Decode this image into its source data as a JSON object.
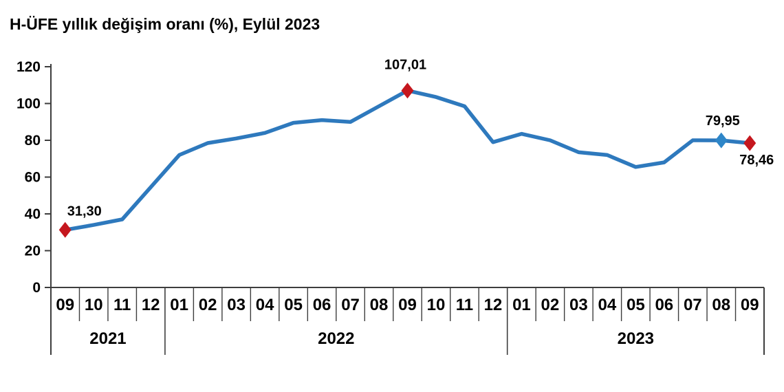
{
  "title": "H-ÜFE yıllık değişim oranı (%), Eylül 2023",
  "colors": {
    "line": "#2e79bd",
    "marker_red": "#c5171e",
    "marker_blue": "#2e86c8",
    "axis": "#3d3d3d",
    "text": "#000000"
  },
  "chart_data": {
    "type": "line",
    "title": "H-ÜFE yıllık değişim oranı (%), Eylül 2023",
    "xlabel": "",
    "ylabel": "",
    "ylim": [
      0,
      120
    ],
    "yticks": [
      0,
      20,
      40,
      60,
      80,
      100,
      120
    ],
    "grid": false,
    "legend": false,
    "year_groups": [
      {
        "label": "2021",
        "months": [
          "09",
          "10",
          "11",
          "12"
        ]
      },
      {
        "label": "2022",
        "months": [
          "01",
          "02",
          "03",
          "04",
          "05",
          "06",
          "07",
          "08",
          "09",
          "10",
          "11",
          "12"
        ]
      },
      {
        "label": "2023",
        "months": [
          "01",
          "02",
          "03",
          "04",
          "05",
          "06",
          "07",
          "08",
          "09"
        ]
      }
    ],
    "values": [
      31.3,
      34,
      37,
      54.5,
      72,
      78.5,
      81,
      84,
      89.5,
      91,
      90,
      98.5,
      107.01,
      103.5,
      98.5,
      79,
      83.5,
      80,
      73.5,
      72,
      65.5,
      68,
      80,
      79.95,
      78.46
    ],
    "highlights": [
      {
        "index": 0,
        "label": "31,30",
        "marker": "red",
        "label_position": "above-right"
      },
      {
        "index": 12,
        "label": "107,01",
        "marker": "red",
        "label_position": "above-high"
      },
      {
        "index": 23,
        "label": "79,95",
        "marker": "blue",
        "label_position": "above"
      },
      {
        "index": 24,
        "label": "78,46",
        "marker": "red",
        "label_position": "below-right"
      }
    ]
  }
}
